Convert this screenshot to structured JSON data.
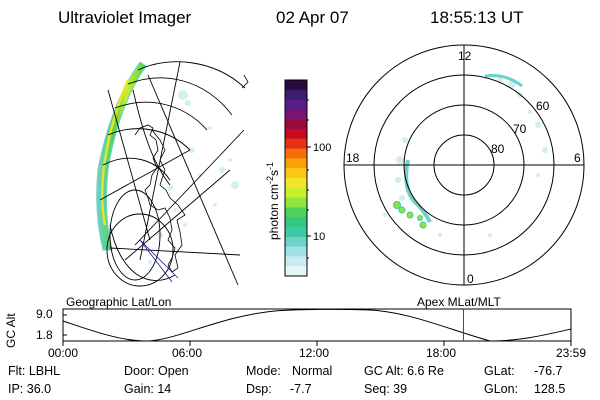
{
  "header": {
    "instrument": "Ultraviolet Imager",
    "date": "02 Apr 07",
    "time": "18:55:13 UT"
  },
  "colorbar": {
    "label": "photon cm",
    "label_sup1": "-2",
    "label_s": "s",
    "label_sup2": "-1",
    "tick_high": "100",
    "tick_low": "10",
    "colors": [
      "#2a0a3c",
      "#3c1e6e",
      "#5a1e8c",
      "#7a1470",
      "#9a0a3c",
      "#c80a1e",
      "#e63214",
      "#f56e0a",
      "#faa00a",
      "#fac814",
      "#f0e628",
      "#c8f028",
      "#8ce63c",
      "#50d25a",
      "#32c882",
      "#3cc8a0",
      "#6ed2c8",
      "#a0e1e6",
      "#c8ebf0",
      "#e6f5f8"
    ]
  },
  "geo_panel": {
    "caption": "Geographic Lat/Lon"
  },
  "mlt_panel": {
    "caption": "Apex MLat/MLT",
    "label_12": "12",
    "label_18": "18",
    "label_6": "6",
    "label_0": "0",
    "label_60": "60",
    "label_70": "70",
    "label_80": "80"
  },
  "timeline": {
    "axis_label": "GC Alt",
    "y_top": "9.0",
    "y_bottom": "1.8",
    "ticks": [
      "00:00",
      "06:00",
      "12:00",
      "18:00",
      "23:59"
    ],
    "current_time_hours": 18.92,
    "marker_color": "#d01010"
  },
  "info": {
    "flt": "Flt: LBHL",
    "door": "Door: Open",
    "mode_label": "Mode:",
    "mode_value": "Normal",
    "gc_alt": "GC Alt: 6.6 Re",
    "glat_label": "GLat:",
    "glat_value": "-76.7",
    "ip": "IP: 36.0",
    "gain": "Gain: 14",
    "dsp_label": "Dsp:",
    "dsp_value": "-7.7",
    "seq": "Seq: 39",
    "glon_label": "GLon:",
    "glon_value": "128.5"
  }
}
